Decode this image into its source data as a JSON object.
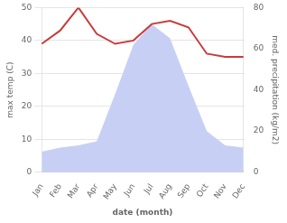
{
  "chart_data": {
    "type": "line",
    "xlabel": "date (month)",
    "ylabel": "max temp (C)",
    "y2label": "med. precipitation (kg/m2)",
    "categories": [
      "Jan",
      "Feb",
      "Mar",
      "Apr",
      "May",
      "Jun",
      "Jul",
      "Aug",
      "Sep",
      "Oct",
      "Nov",
      "Dec"
    ],
    "series": [
      {
        "type": "area",
        "color": "#c8cff5",
        "axis": "y2",
        "values": [
          10,
          12,
          13,
          15,
          38,
          62,
          72,
          65,
          42,
          20,
          13,
          12
        ]
      },
      {
        "type": "line",
        "color": "#c93b3b",
        "values": [
          39,
          43,
          50,
          42,
          39,
          40,
          45,
          46,
          44,
          36,
          35,
          35
        ]
      }
    ],
    "ylim": [
      0,
      50
    ],
    "yticks": [
      0,
      10,
      20,
      30,
      40,
      50
    ],
    "y2lim": [
      0,
      80
    ],
    "y2ticks": [
      0,
      20,
      40,
      60,
      80
    ],
    "grid": true
  }
}
